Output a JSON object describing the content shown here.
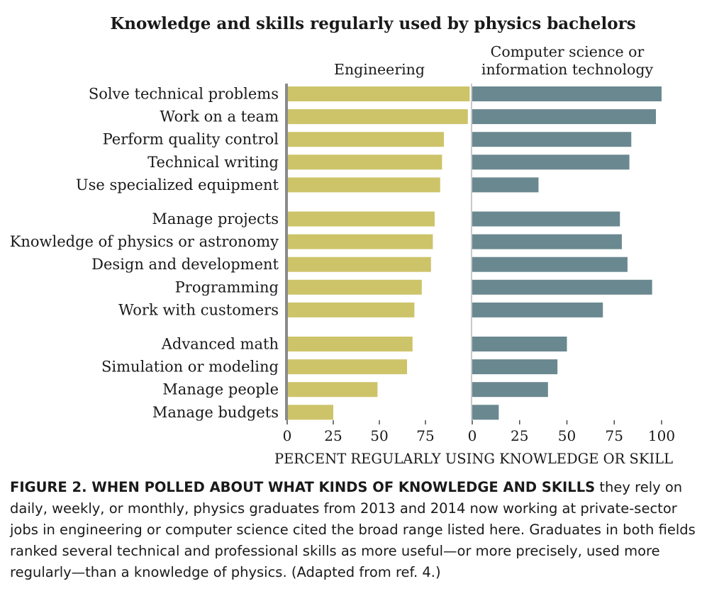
{
  "chart_data": {
    "type": "bar",
    "title": "Knowledge and skills regularly used by physics bachelors",
    "xlabel": "PERCENT REGULARLY USING KNOWLEDGE OR SKILL",
    "categories": [
      "Solve technical problems",
      "Work on a team",
      "Perform quality control",
      "Technical writing",
      "Use specialized equipment",
      "Manage projects",
      "Knowledge of physics or astronomy",
      "Design and development",
      "Programming",
      "Work with customers",
      "Advanced math",
      "Simulation or modeling",
      "Manage people",
      "Manage budgets"
    ],
    "groups": [
      5,
      5,
      4
    ],
    "series": [
      {
        "name": "Engineering",
        "color": "#cdc46a",
        "xlim": [
          0,
          100
        ],
        "ticks": [
          "0",
          "25",
          "50",
          "75"
        ],
        "values": [
          99,
          98,
          85,
          84,
          83,
          80,
          79,
          78,
          73,
          69,
          68,
          65,
          49,
          25
        ]
      },
      {
        "name": "Computer science or information technology",
        "name_lines": [
          "Computer science or",
          "information technology"
        ],
        "color": "#6a8890",
        "xlim": [
          0,
          100
        ],
        "ticks": [
          "0",
          "25",
          "50",
          "75",
          "100"
        ],
        "values": [
          100,
          97,
          84,
          83,
          35,
          78,
          79,
          82,
          95,
          69,
          50,
          45,
          40,
          14
        ]
      }
    ],
    "legend": "above each panel",
    "grid": false
  },
  "caption": {
    "lead": "FIGURE 2. WHEN POLLED ABOUT WHAT KINDS OF KNOWLEDGE AND SKILLS",
    "body": "they rely on daily, weekly, or monthly, physics graduates from 2013 and 2014 now working at private-sector jobs in engineering or computer science cited the broad range listed here. Graduates in both fields ranked several technical and professional skills as more useful—or more precisely, used more regularly—than a knowledge of physics. (Adapted from ref. 4.)"
  }
}
